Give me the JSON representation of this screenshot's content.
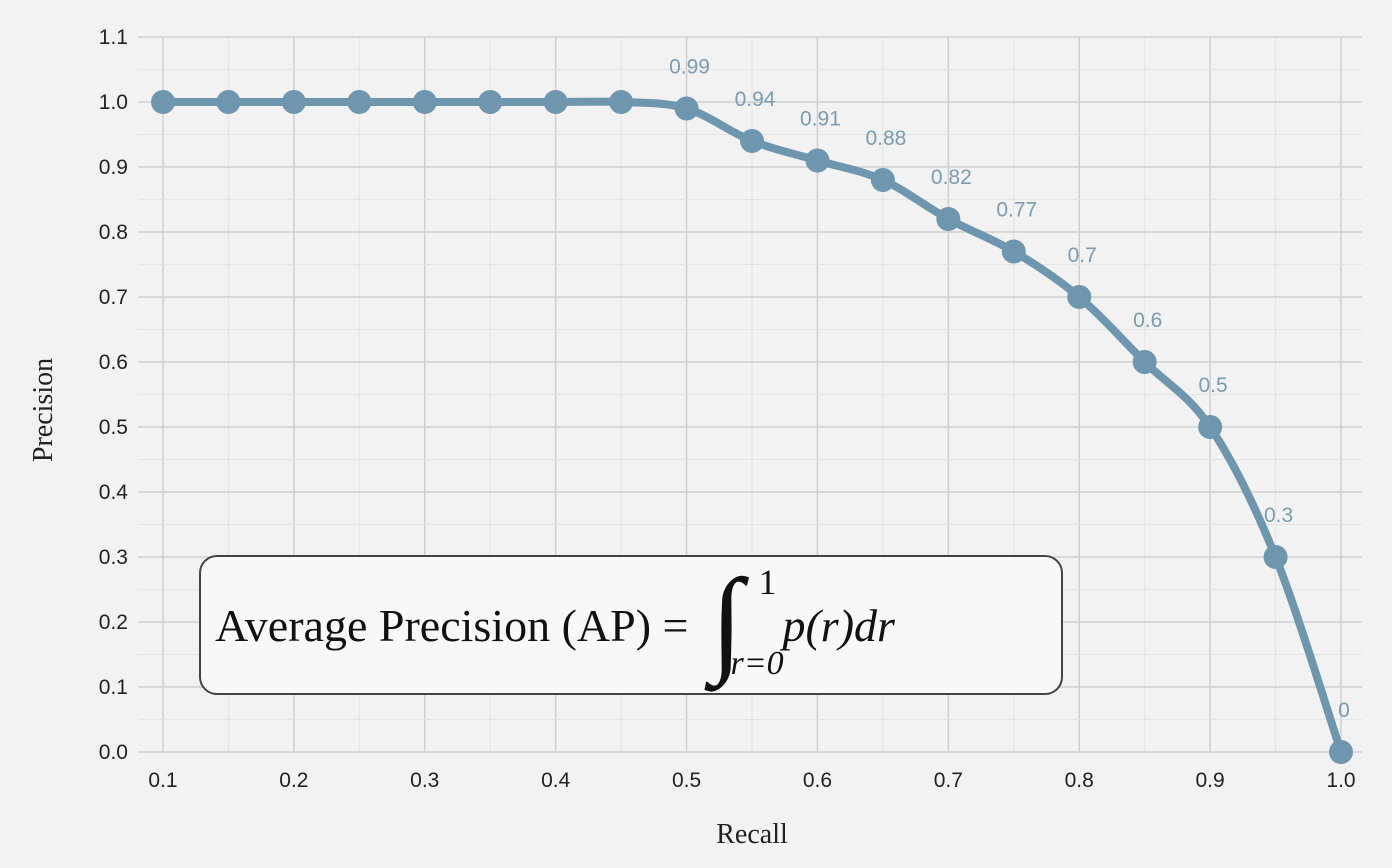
{
  "chart_data": {
    "type": "line",
    "xlabel": "Recall",
    "ylabel": "Precision",
    "xlim": [
      0.1,
      1.0
    ],
    "ylim": [
      0.0,
      1.1
    ],
    "grid": true,
    "line_color": "#6e96ae",
    "x_ticks": [
      "0.1",
      "0.2",
      "0.3",
      "0.4",
      "0.5",
      "0.6",
      "0.7",
      "0.8",
      "0.9",
      "1.0"
    ],
    "y_ticks": [
      "0.0",
      "0.1",
      "0.2",
      "0.3",
      "0.4",
      "0.5",
      "0.6",
      "0.7",
      "0.8",
      "0.9",
      "1.0",
      "1.1"
    ],
    "x": [
      0.1,
      0.15,
      0.2,
      0.25,
      0.3,
      0.35,
      0.4,
      0.45,
      0.5,
      0.55,
      0.6,
      0.65,
      0.7,
      0.75,
      0.8,
      0.85,
      0.9,
      0.95,
      1.0
    ],
    "y": [
      1.0,
      1.0,
      1.0,
      1.0,
      1.0,
      1.0,
      1.0,
      1.0,
      0.99,
      0.94,
      0.91,
      0.88,
      0.82,
      0.77,
      0.7,
      0.6,
      0.5,
      0.3,
      0.0
    ],
    "data_labels": [
      "",
      "",
      "",
      "",
      "",
      "",
      "",
      "",
      "0.99",
      "0.94",
      "0.91",
      "0.88",
      "0.82",
      "0.77",
      "0.7",
      "0.6",
      "0.5",
      "0.3",
      "0"
    ]
  },
  "formula": {
    "lhs": "Average Precision (AP) =",
    "upper_limit": "1",
    "lower_limit": "r=0",
    "integrand": "p(r)dr"
  }
}
